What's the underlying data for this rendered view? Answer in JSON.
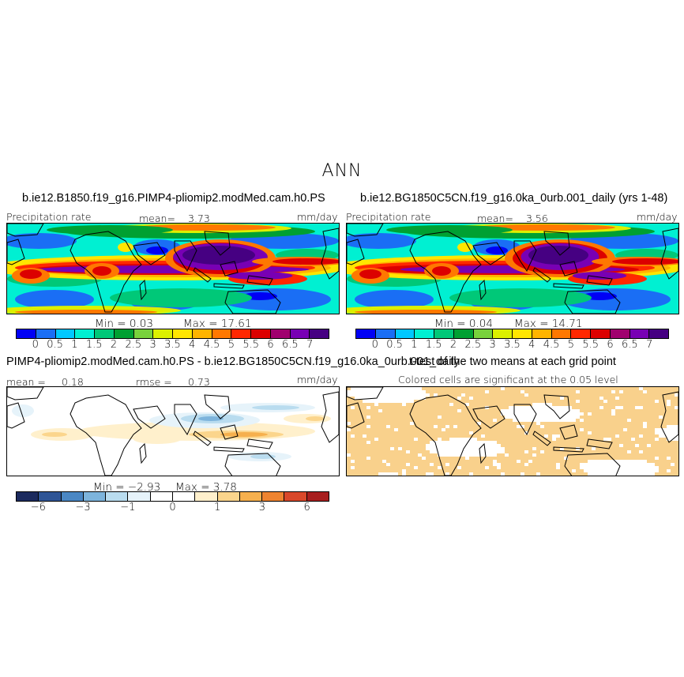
{
  "figure": {
    "title": "ANN",
    "panels": [
      {
        "title": "b.ie12.B1850.f19_g16.PIMP4-pliomip2.modMed.cam.h0.PS",
        "left_label": "Precipitation rate",
        "mean_label": "mean=",
        "mean_value": "3.73",
        "units": "mm/day"
      },
      {
        "title": "b.ie12.BG1850C5CN.f19_g16.0ka_0urb.001_daily (yrs 1-48)",
        "left_label": "Precipitation rate",
        "mean_label": "mean=",
        "mean_value": "3.56",
        "units": "mm/day"
      },
      {
        "title": "PIMP4-pliomip2.modMed.cam.h0.PS - b.ie12.BG1850C5CN.f19_g16.0ka_0urb.001_daily",
        "left_label": "mean =",
        "mean_value": "0.18",
        "rmse_label": "rmse =",
        "rmse_value": "0.73",
        "units": "mm/day"
      },
      {
        "title": "t-test of the two means at each grid point",
        "note": "Colored cells are significant at the 0.05 level"
      }
    ]
  },
  "chart_data": [
    {
      "type": "heatmap",
      "title": "b.ie12.B1850.f19_g16.PIMP4-pliomip2.modMed.cam.h0.PS",
      "variable": "Precipitation rate",
      "units": "mm/day",
      "mean": 3.73,
      "min": 0.03,
      "max": 17.61,
      "min_text": "Min =    0.03",
      "max_text": "Max =   17.61",
      "colorbar_levels": [
        "0",
        "0.5",
        "1",
        "1.5",
        "2",
        "2.5",
        "3",
        "3.5",
        "4",
        "4.5",
        "5",
        "5.5",
        "6",
        "6.5",
        "7"
      ],
      "colorbar_colors": [
        "#0000f5",
        "#1a6ef5",
        "#00c8ff",
        "#00f0d2",
        "#00c878",
        "#00a032",
        "#78d23c",
        "#dcf000",
        "#ffe600",
        "#ffb400",
        "#ff7800",
        "#ff2800",
        "#dc0000",
        "#a0006e",
        "#7800b4",
        "#460082"
      ]
    },
    {
      "type": "heatmap",
      "title": "b.ie12.BG1850C5CN.f19_g16.0ka_0urb.001_daily (yrs 1-48)",
      "variable": "Precipitation rate",
      "units": "mm/day",
      "mean": 3.56,
      "min": 0.04,
      "max": 14.71,
      "min_text": "Min =    0.04",
      "max_text": "Max =   14.71",
      "colorbar_levels": [
        "0",
        "0.5",
        "1",
        "1.5",
        "2",
        "2.5",
        "3",
        "3.5",
        "4",
        "4.5",
        "5",
        "5.5",
        "6",
        "6.5",
        "7"
      ],
      "colorbar_colors": [
        "#0000f5",
        "#1a6ef5",
        "#00c8ff",
        "#00f0d2",
        "#00c878",
        "#00a032",
        "#78d23c",
        "#dcf000",
        "#ffe600",
        "#ffb400",
        "#ff7800",
        "#ff2800",
        "#dc0000",
        "#a0006e",
        "#7800b4",
        "#460082"
      ]
    },
    {
      "type": "heatmap",
      "title": "PIMP4-pliomip2.modMed.cam.h0.PS - b.ie12.BG1850C5CN.f19_g16.0ka_0urb.001_daily",
      "units": "mm/day",
      "mean": 0.18,
      "rmse": 0.73,
      "min": -2.93,
      "max": 3.78,
      "min_text": "Min =  −2.93",
      "max_text": "Max =    3.78",
      "colorbar_levels": [
        "−6",
        "−3",
        "−1",
        "0",
        "1",
        "3",
        "6"
      ],
      "colorbar_colors": [
        "#1b2a5e",
        "#2f5596",
        "#4a87c4",
        "#7db4dc",
        "#b9dcef",
        "#e6f3fa",
        "#ffffff",
        "#ffffff",
        "#fff0cc",
        "#fbd58c",
        "#f6b04e",
        "#ef8430",
        "#d9482a",
        "#a81e1e"
      ]
    },
    {
      "type": "heatmap",
      "title": "t-test of the two means at each grid point",
      "annotation": "Colored cells are significant at the 0.05 level",
      "significant_color": "#f9d18c"
    }
  ],
  "colors": {
    "map_outline": "#000000",
    "significance_fill": "#f9d18c",
    "wet_core": "#5a0096"
  }
}
